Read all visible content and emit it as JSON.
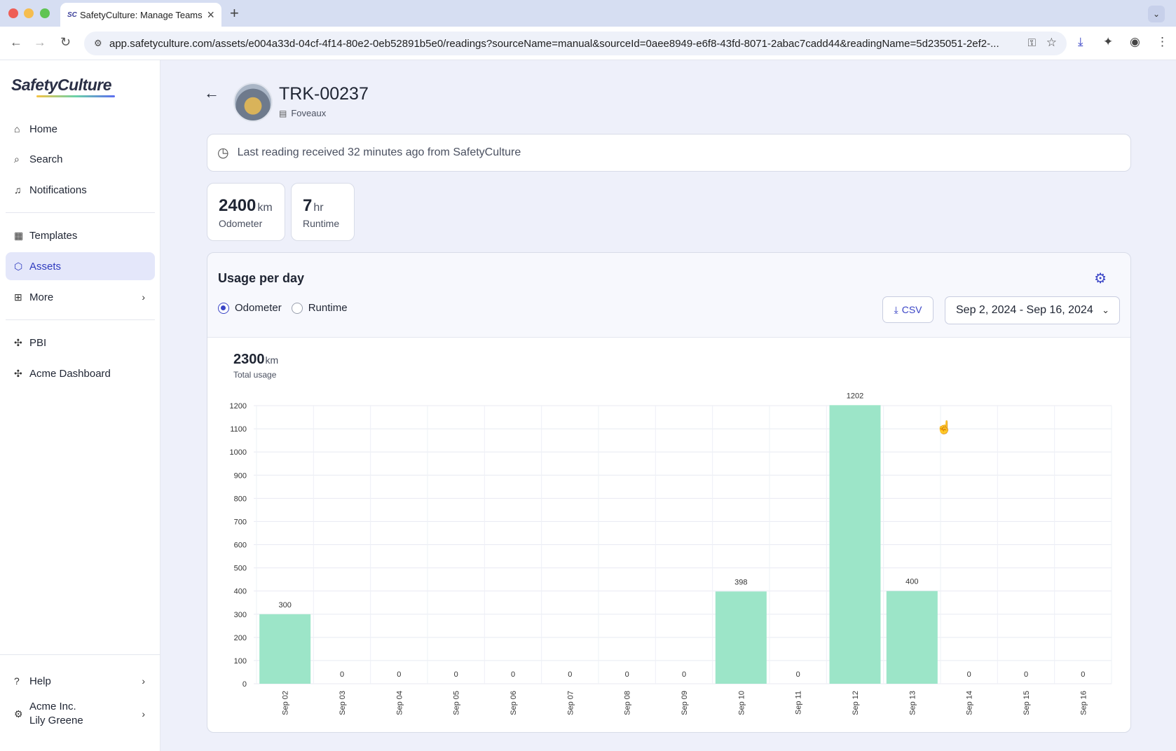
{
  "browser": {
    "tab_title": "SafetyCulture: Manage Teams",
    "tab_favicon": "SC",
    "url": "app.safetyculture.com/assets/e004a33d-04cf-4f14-80e2-0eb52891b5e0/readings?sourceName=manual&sourceId=0aee8949-e6f8-43fd-8071-2abac7cadd44&readingName=5d235051-2ef2-..."
  },
  "sidebar": {
    "logo": "SafetyCulture",
    "items": [
      {
        "label": "Home",
        "icon": "home-icon"
      },
      {
        "label": "Search",
        "icon": "search-icon"
      },
      {
        "label": "Notifications",
        "icon": "bell-icon"
      },
      {
        "label": "Templates",
        "icon": "templates-icon"
      },
      {
        "label": "Assets",
        "icon": "cube-icon"
      },
      {
        "label": "More",
        "icon": "grid-icon"
      },
      {
        "label": "PBI",
        "icon": "puzzle-icon"
      },
      {
        "label": "Acme Dashboard",
        "icon": "puzzle-icon"
      }
    ],
    "help": "Help",
    "org": "Acme Inc.",
    "user": "Lily Greene"
  },
  "asset": {
    "title": "TRK-00237",
    "site": "Foveaux",
    "last_reading": "Last reading received 32 minutes ago from SafetyCulture"
  },
  "stats": [
    {
      "value": "2400",
      "unit": "km",
      "label": "Odometer"
    },
    {
      "value": "7",
      "unit": "hr",
      "label": "Runtime"
    }
  ],
  "usage": {
    "title": "Usage per day",
    "radio_odometer": "Odometer",
    "radio_runtime": "Runtime",
    "selected": "Odometer",
    "csv_label": "CSV",
    "date_range": "Sep 2, 2024 - Sep 16, 2024",
    "total_value": "2300",
    "total_unit": "km",
    "total_label": "Total usage"
  },
  "chart_data": {
    "type": "bar",
    "categories": [
      "Sep 02",
      "Sep 03",
      "Sep 04",
      "Sep 05",
      "Sep 06",
      "Sep 07",
      "Sep 08",
      "Sep 09",
      "Sep 10",
      "Sep 11",
      "Sep 12",
      "Sep 13",
      "Sep 14",
      "Sep 15",
      "Sep 16"
    ],
    "values": [
      300,
      0,
      0,
      0,
      0,
      0,
      0,
      0,
      398,
      0,
      1202,
      400,
      0,
      0,
      0
    ],
    "value_labels": [
      "300",
      "0",
      "0",
      "0",
      "0",
      "0",
      "0",
      "0",
      "398",
      "0",
      "1202",
      "400",
      "0",
      "0",
      "0"
    ],
    "yticks": [
      0,
      100,
      200,
      300,
      400,
      500,
      600,
      700,
      800,
      900,
      1000,
      1100,
      1200
    ],
    "ylim": [
      0,
      1200
    ],
    "bar_color": "#9ce5c8",
    "grid": true
  },
  "colors": {
    "accent": "#3a45c6",
    "bar": "#9ce5c8"
  }
}
